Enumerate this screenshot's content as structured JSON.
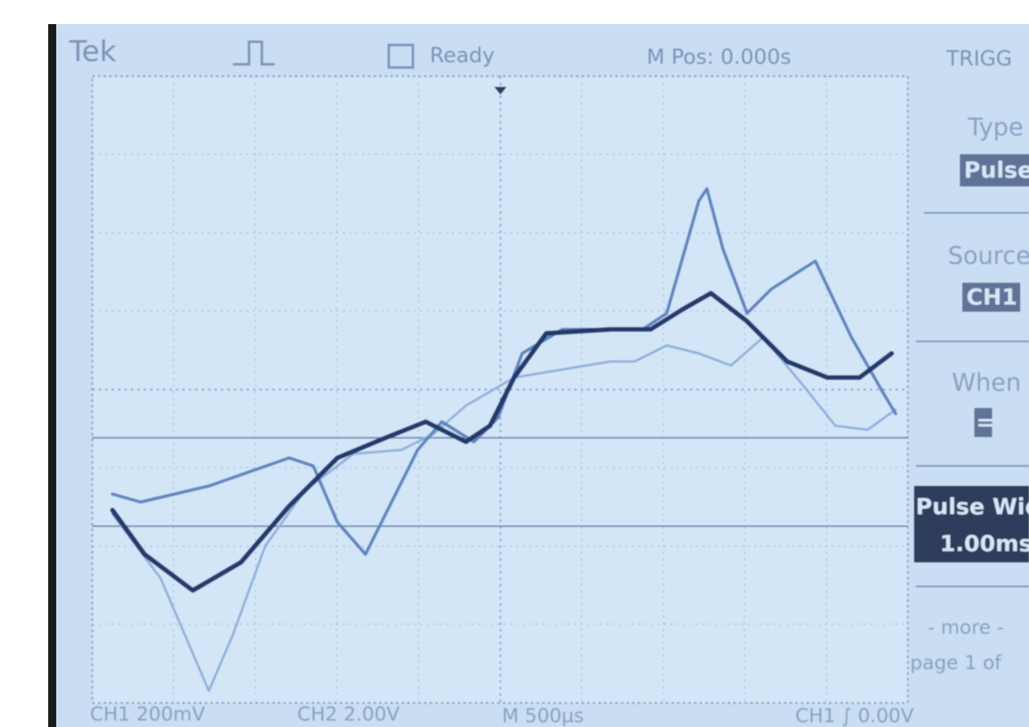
{
  "header": {
    "brand": "Tek",
    "status": "Ready",
    "position": "M Pos: 0.000s",
    "menu_title": "TRIGG"
  },
  "menu": {
    "items": [
      {
        "label": "Type",
        "value": "Pulse"
      },
      {
        "label": "Source",
        "value": "CH1"
      },
      {
        "label": "When",
        "value": "="
      },
      {
        "label": "Pulse Wid",
        "value": "1.00ms"
      }
    ],
    "more": "- more -",
    "page": "page 1 of"
  },
  "footer": {
    "ch1": "CH1 200mV",
    "ch2": "CH2 2.00V",
    "timebase": "M 500µs",
    "trigger": "CH1 ∫ 0.00V"
  }
}
